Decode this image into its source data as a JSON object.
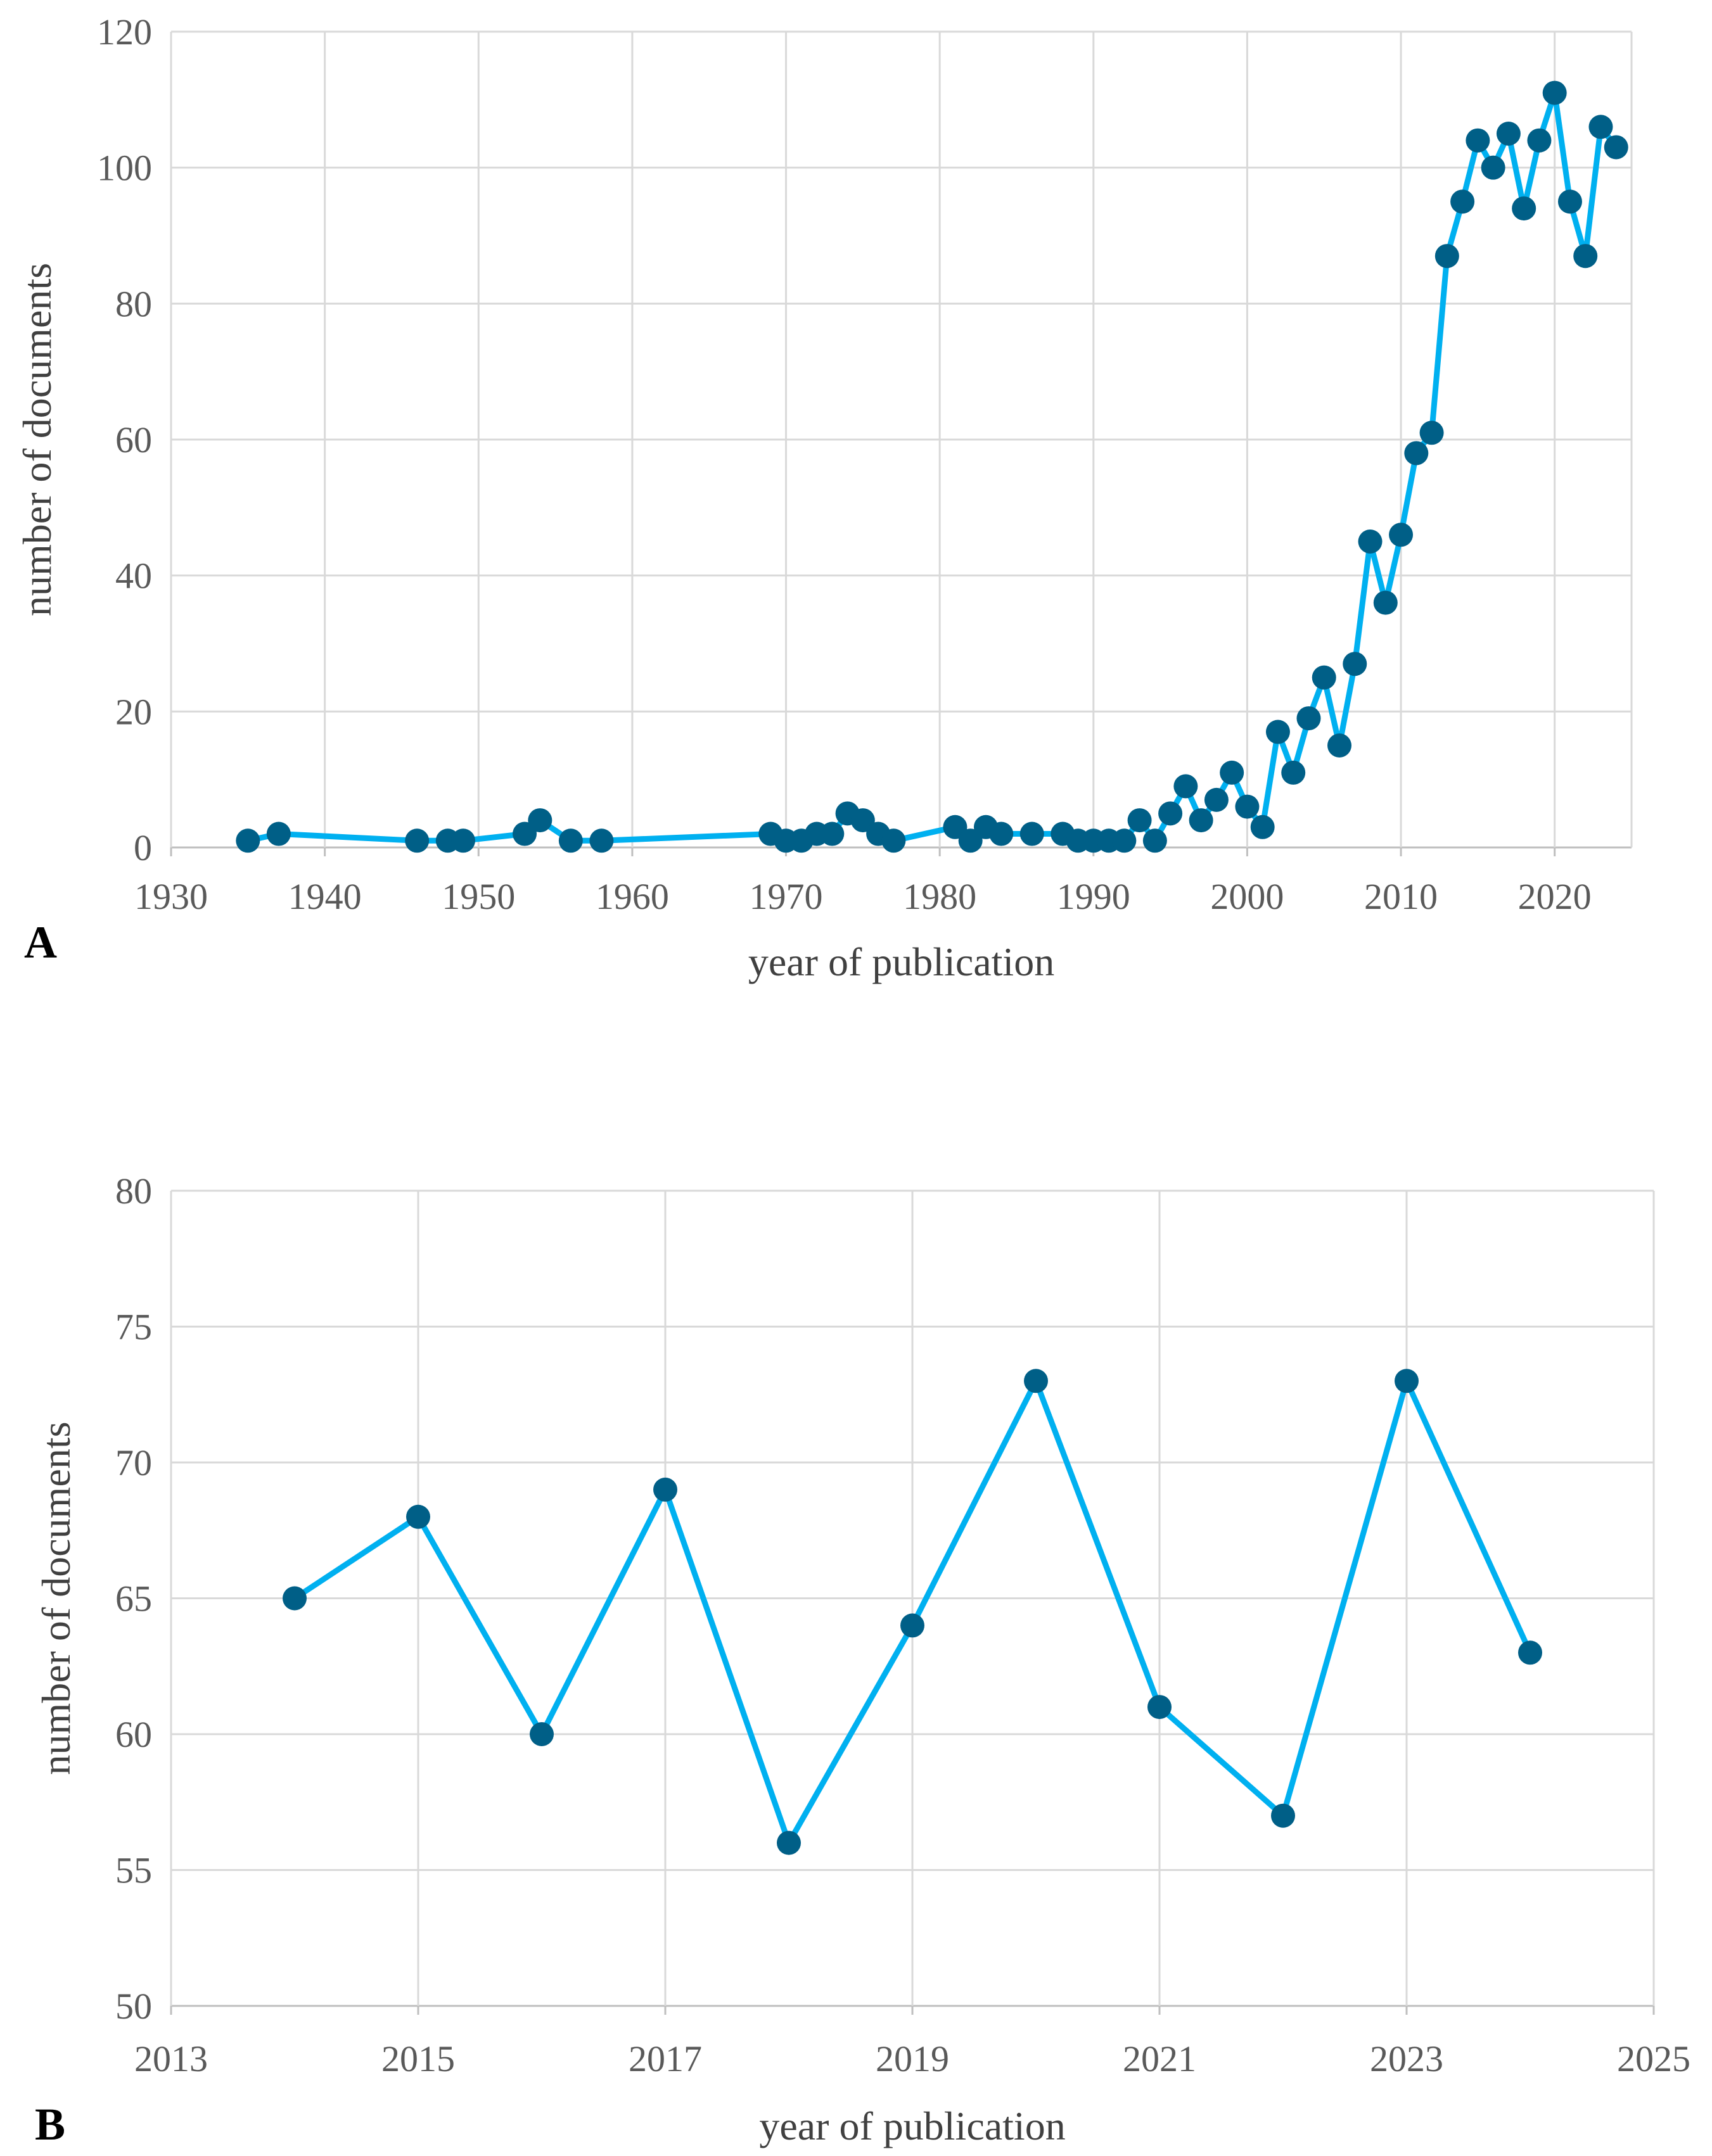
{
  "colors": {
    "line": "#00B0F0",
    "marker": "#005F87",
    "grid": "#D9D9D9",
    "text": "#595959"
  },
  "chart_data": [
    {
      "type": "line",
      "panel": "A",
      "title": "",
      "xlabel": "year of publication",
      "ylabel": "number of documents",
      "xlim": [
        1930,
        2025
      ],
      "ylim": [
        0,
        120
      ],
      "xticks": [
        1930,
        1940,
        1950,
        1960,
        1970,
        1980,
        1990,
        2000,
        2010,
        2020
      ],
      "yticks": [
        0,
        20,
        40,
        60,
        80,
        100,
        120
      ],
      "grid": true,
      "x": [
        1935,
        1937,
        1946,
        1948,
        1949,
        1953,
        1954,
        1956,
        1958,
        1969,
        1970,
        1971,
        1972,
        1973,
        1974,
        1975,
        1976,
        1977,
        1981,
        1982,
        1983,
        1984,
        1986,
        1988,
        1989,
        1990,
        1991,
        1992,
        1993,
        1994,
        1995,
        1996,
        1997,
        1998,
        1999,
        2000,
        2001,
        2002,
        2003,
        2004,
        2005,
        2006,
        2007,
        2008,
        2009,
        2010,
        2011,
        2012,
        2013,
        2014,
        2015,
        2016,
        2017,
        2018,
        2019,
        2020,
        2021,
        2022,
        2023,
        2024
      ],
      "y": [
        1,
        2,
        1,
        1,
        1,
        2,
        4,
        1,
        1,
        2,
        1,
        1,
        2,
        2,
        5,
        4,
        2,
        1,
        3,
        1,
        3,
        2,
        2,
        2,
        1,
        1,
        1,
        1,
        4,
        1,
        5,
        9,
        4,
        7,
        11,
        6,
        3,
        17,
        11,
        19,
        25,
        15,
        27,
        45,
        36,
        46,
        58,
        61,
        87,
        95,
        104,
        100,
        105,
        94,
        104,
        111,
        95,
        87,
        106,
        103
      ]
    },
    {
      "type": "line",
      "panel": "B",
      "title": "",
      "xlabel": "year of publication",
      "ylabel": "number of documents",
      "xlim": [
        2013,
        2025
      ],
      "ylim": [
        50,
        80
      ],
      "xticks": [
        2013,
        2015,
        2017,
        2019,
        2021,
        2023,
        2025
      ],
      "yticks": [
        50,
        55,
        60,
        65,
        70,
        75,
        80
      ],
      "grid": true,
      "x": [
        2014,
        2015,
        2016,
        2017,
        2018,
        2019,
        2020,
        2021,
        2022,
        2023,
        2024
      ],
      "y": [
        65,
        68,
        60,
        69,
        56,
        64,
        73,
        61,
        57,
        73,
        63
      ]
    }
  ]
}
